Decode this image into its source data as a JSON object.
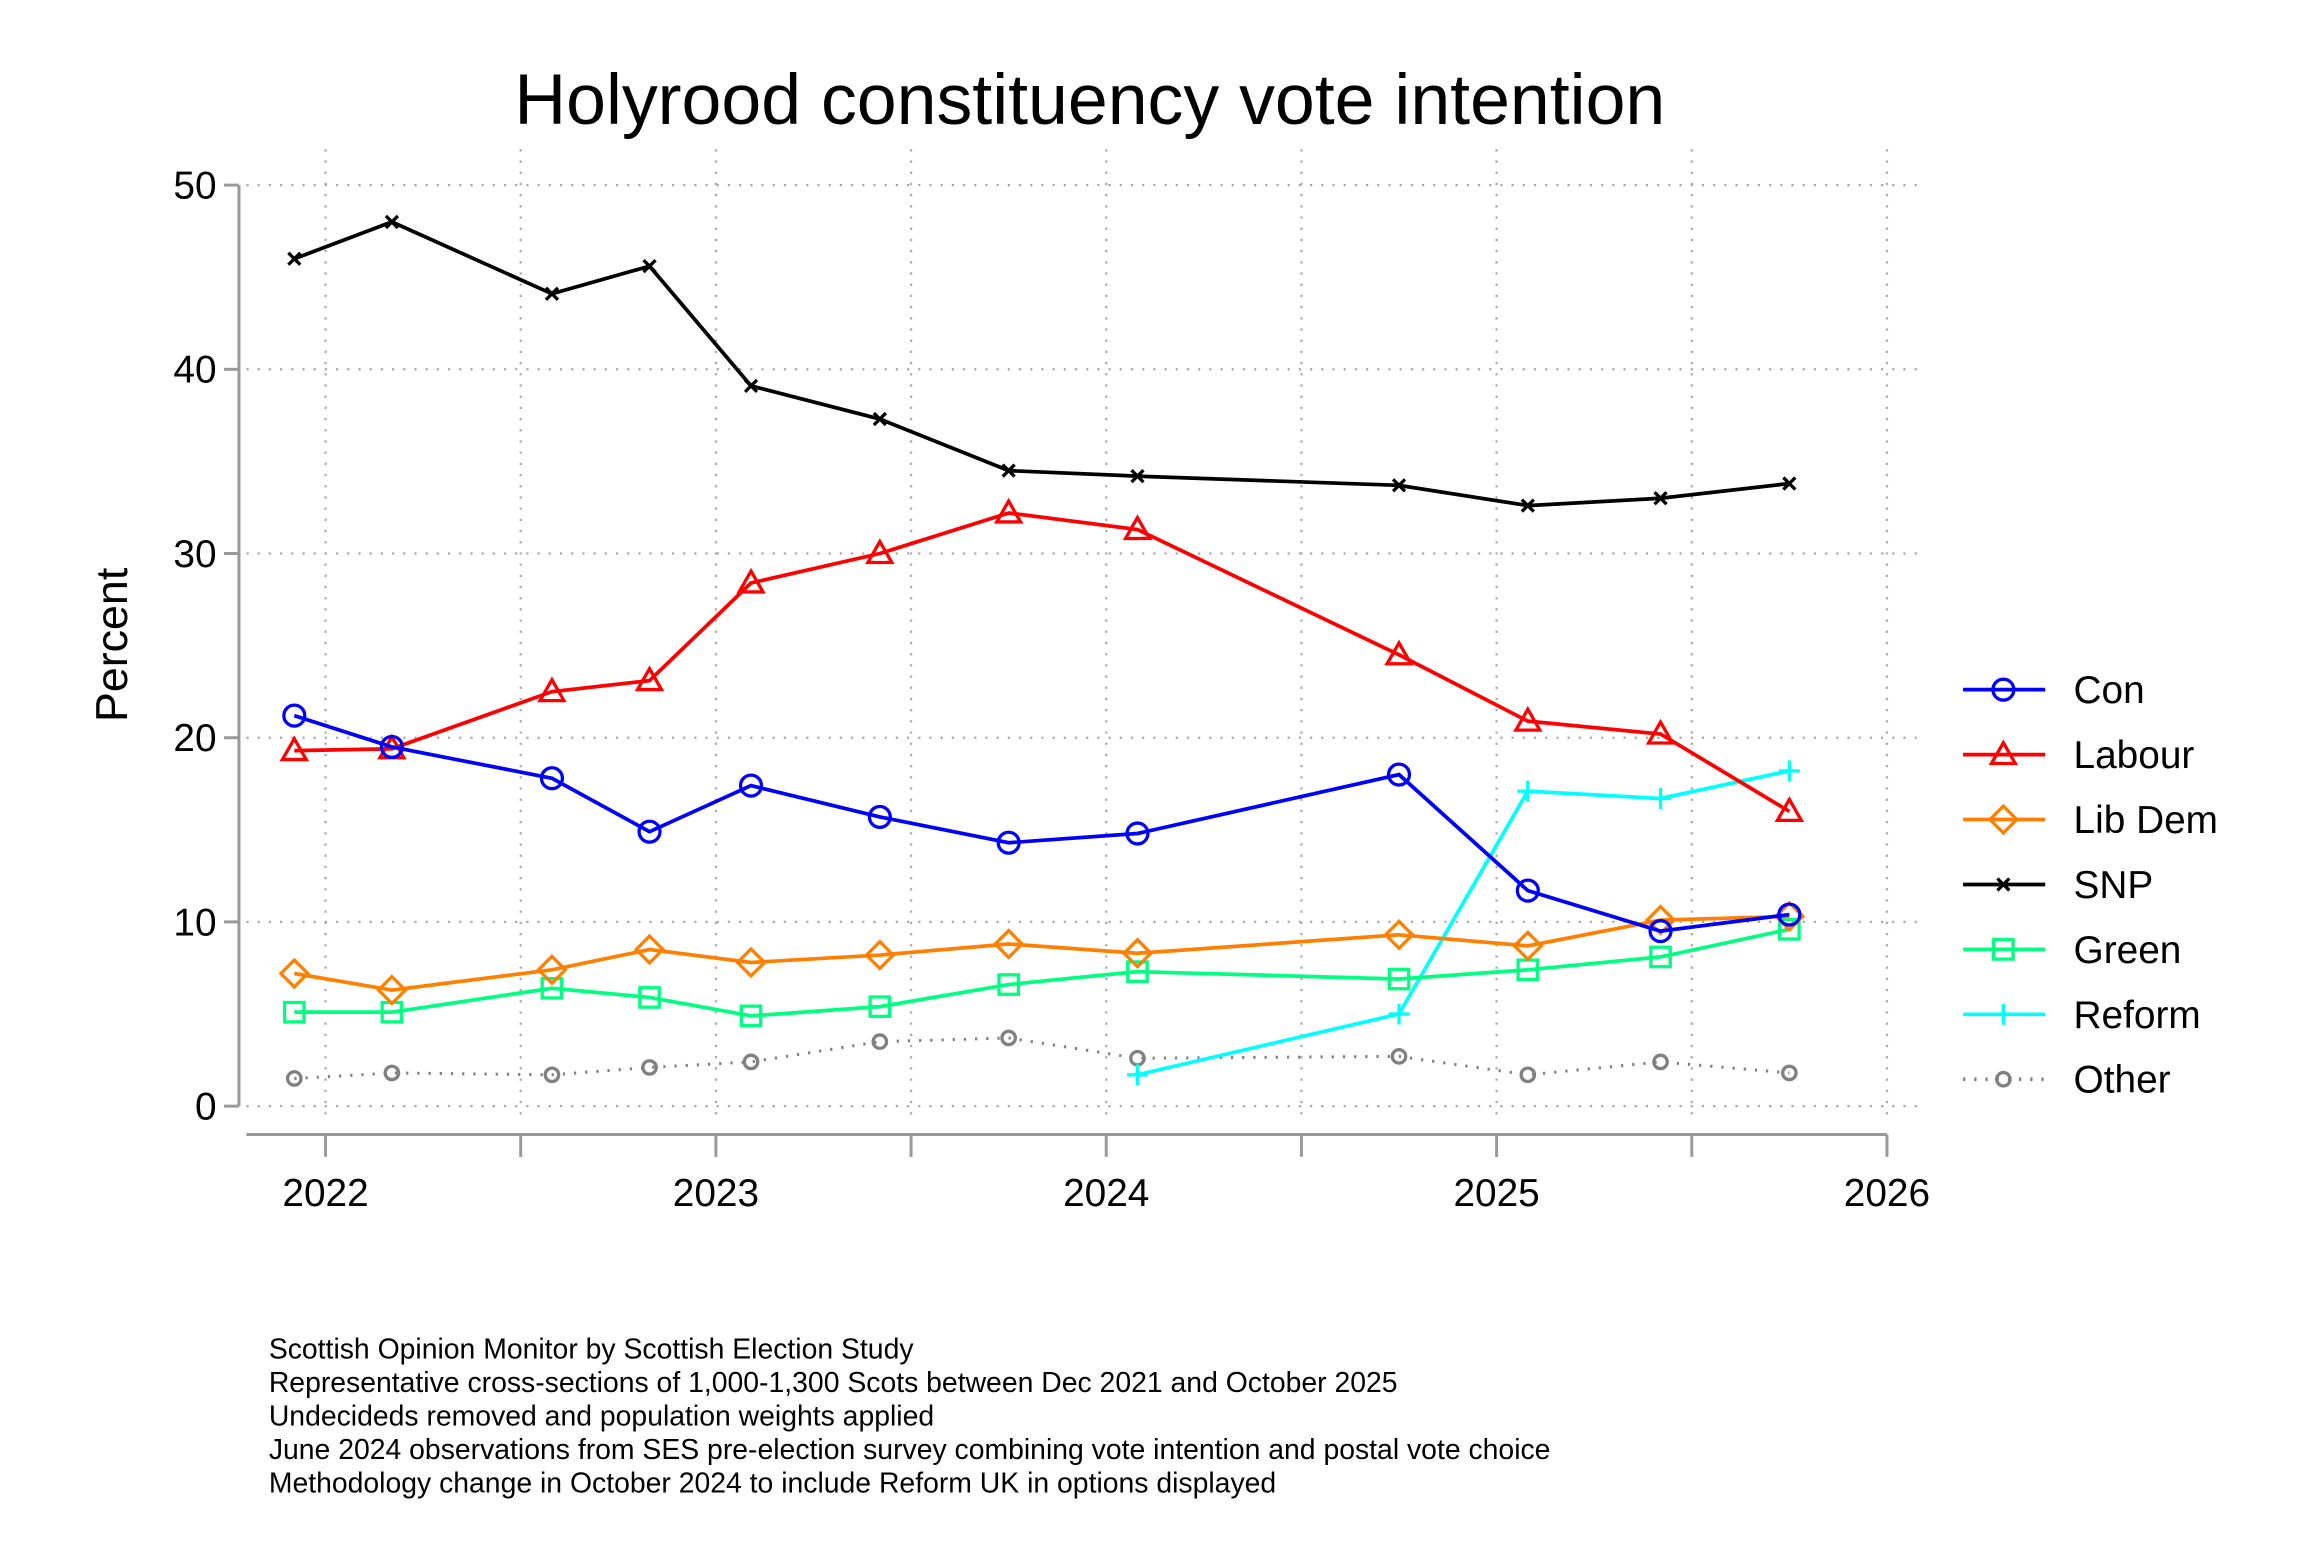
{
  "chart_data": {
    "type": "line",
    "title": "Holyrood constituency vote intention",
    "xlabel": "",
    "ylabel": "Percent",
    "xlim": [
      2021.85,
      2026.1
    ],
    "ylim": [
      0,
      50
    ],
    "yticks": [
      0,
      10,
      20,
      30,
      40,
      50
    ],
    "xticks": [
      2022,
      2023,
      2024,
      2025,
      2026
    ],
    "grid": true,
    "legend_position": "right",
    "x": [
      2021.92,
      2022.17,
      2022.58,
      2022.83,
      2023.09,
      2023.42,
      2023.75,
      2024.08,
      2024.75,
      2025.08,
      2025.42,
      2025.75
    ],
    "series": [
      {
        "name": "Con",
        "color": "#0000ff",
        "marker": "circle",
        "dash": false,
        "values": [
          21.2,
          19.5,
          17.8,
          14.9,
          17.4,
          15.7,
          14.3,
          14.8,
          18.0,
          11.7,
          9.5,
          10.4
        ]
      },
      {
        "name": "Labour",
        "color": "#ff0000",
        "marker": "triangle",
        "dash": false,
        "values": [
          19.3,
          19.4,
          22.5,
          23.1,
          28.4,
          30.0,
          32.2,
          31.3,
          24.5,
          20.9,
          20.2,
          16.0
        ]
      },
      {
        "name": "Lib Dem",
        "color": "#ff8000",
        "marker": "diamond",
        "dash": false,
        "values": [
          7.2,
          6.3,
          7.4,
          8.5,
          7.8,
          8.2,
          8.8,
          8.3,
          9.3,
          8.7,
          10.1,
          10.3
        ]
      },
      {
        "name": "SNP",
        "color": "#000000",
        "marker": "x",
        "dash": false,
        "values": [
          46.0,
          48.0,
          44.1,
          45.6,
          39.1,
          37.3,
          34.5,
          34.2,
          33.7,
          32.6,
          33.0,
          33.8
        ]
      },
      {
        "name": "Green",
        "color": "#00ff80",
        "marker": "square",
        "dash": false,
        "values": [
          5.1,
          5.1,
          6.4,
          5.9,
          4.9,
          5.4,
          6.6,
          7.3,
          6.9,
          7.4,
          8.1,
          9.6
        ]
      },
      {
        "name": "Reform",
        "color": "#00ffff",
        "marker": "plus",
        "dash": false,
        "values": [
          null,
          null,
          null,
          null,
          null,
          null,
          null,
          1.7,
          5.0,
          17.1,
          16.7,
          18.2
        ]
      },
      {
        "name": "Other",
        "color": "#808080",
        "marker": "smallcircle",
        "dash": true,
        "values": [
          1.5,
          1.8,
          1.7,
          2.1,
          2.4,
          3.5,
          3.7,
          2.6,
          2.7,
          1.7,
          2.4,
          1.8
        ]
      }
    ],
    "notes": [
      "Scottish Opinion Monitor by Scottish Election Study",
      "Representative cross-sections of 1,000-1,300 Scots between Dec 2021 and October 2025",
      "Undecideds removed and population weights applied",
      "June 2024 observations from SES pre-election survey combining vote intention and postal vote choice",
      "Methodology change in October 2024 to include Reform UK in options displayed"
    ]
  }
}
